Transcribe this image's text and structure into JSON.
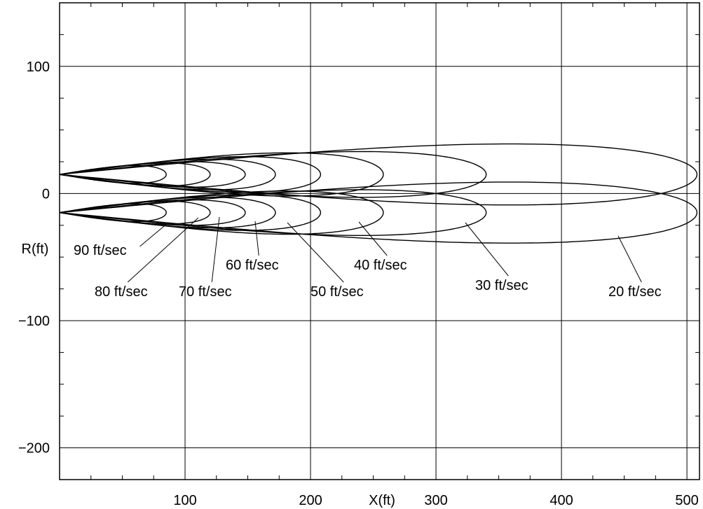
{
  "chart_data": {
    "type": "line",
    "title": "",
    "xlabel": "X(ft)",
    "ylabel": "R(ft)",
    "xlim": [
      0,
      510
    ],
    "ylim": [
      -225,
      150
    ],
    "xticks": [
      100,
      200,
      300,
      400,
      500
    ],
    "yticks": [
      100,
      0,
      -100,
      -200
    ],
    "ytick_labels": [
      "100",
      "0",
      "−100",
      "−200"
    ],
    "grid": true,
    "source_offset_r": 15,
    "series": [
      {
        "name": "90 ft/sec",
        "depth": 85,
        "half_width": 7
      },
      {
        "name": "80 ft/sec",
        "depth": 120,
        "half_width": 9
      },
      {
        "name": "70 ft/sec",
        "depth": 148,
        "half_width": 10
      },
      {
        "name": "60 ft/sec",
        "depth": 172,
        "half_width": 12
      },
      {
        "name": "50 ft/sec",
        "depth": 208,
        "half_width": 14
      },
      {
        "name": "40 ft/sec",
        "depth": 258,
        "half_width": 17
      },
      {
        "name": "30 ft/sec",
        "depth": 340,
        "half_width": 18
      },
      {
        "name": "20 ft/sec",
        "depth": 508,
        "half_width": 24
      }
    ]
  }
}
